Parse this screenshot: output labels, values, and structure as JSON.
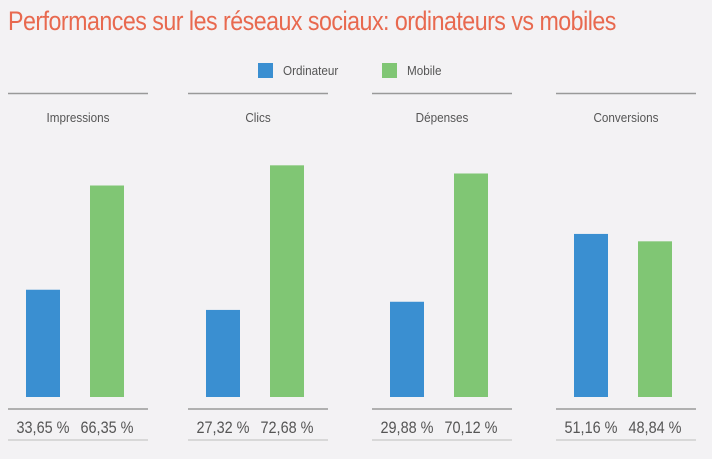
{
  "chart_data": {
    "type": "bar",
    "title": "Performances sur les réseaux sociaux: ordinateurs vs mobiles",
    "series": [
      {
        "name": "Ordinateur",
        "values": [
          33.65,
          27.32,
          29.88,
          51.16
        ]
      },
      {
        "name": "Mobile",
        "values": [
          66.35,
          72.68,
          70.12,
          48.84
        ]
      }
    ],
    "panels": [
      "Impressions",
      "Clics",
      "Dépenses",
      "Conversions"
    ],
    "value_labels": [
      [
        "33,65 %",
        "66,35 %"
      ],
      [
        "27,32 %",
        "72,68 %"
      ],
      [
        "29,88 %",
        "70,12 %"
      ],
      [
        "51,16 %",
        "48,84 %"
      ]
    ],
    "xlabel": "",
    "ylabel": "",
    "ylim": [
      0,
      100
    ],
    "legend": "top-center",
    "grid": false
  },
  "colors": {
    "title": "#e8694f",
    "ordinateur": "#3a8fd1",
    "mobile": "#80c674",
    "rule": "#999999",
    "text": "#555555",
    "background": "#f3f2f4"
  }
}
